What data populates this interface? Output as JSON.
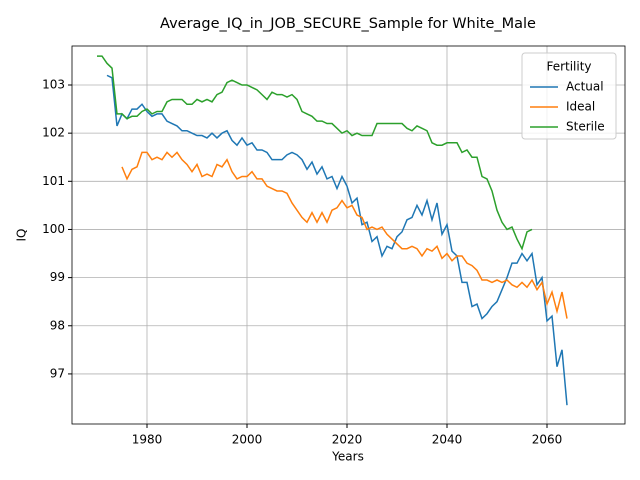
{
  "chart_data": {
    "type": "line",
    "title": "Average_IQ_in_JOB_SECURE_Sample for White_Male",
    "x_label": "Years",
    "y_label": "IQ",
    "legend_title": "Fertility",
    "legend_position": "upper right",
    "grid": true,
    "xlim": [
      1965,
      2075.6
    ],
    "ylim": [
      95.96,
      103.81
    ],
    "xticks": [
      1980,
      2000,
      2020,
      2040,
      2060
    ],
    "yticks": [
      97,
      98,
      99,
      100,
      101,
      102,
      103
    ],
    "series": [
      {
        "name": "Actual",
        "color": "#1f77b4",
        "x": [
          1972,
          1973,
          1974,
          1975,
          1976,
          1977,
          1978,
          1979,
          1980,
          1981,
          1982,
          1983,
          1984,
          1985,
          1986,
          1987,
          1988,
          1989,
          1990,
          1991,
          1992,
          1993,
          1994,
          1995,
          1996,
          1997,
          1998,
          1999,
          2000,
          2001,
          2002,
          2003,
          2004,
          2005,
          2006,
          2007,
          2008,
          2009,
          2010,
          2011,
          2012,
          2013,
          2014,
          2015,
          2016,
          2017,
          2018,
          2019,
          2020,
          2021,
          2022,
          2023,
          2024,
          2025,
          2026,
          2027,
          2028,
          2029,
          2030,
          2031,
          2032,
          2033,
          2034,
          2035,
          2036,
          2037,
          2038,
          2039,
          2040,
          2041,
          2042,
          2043,
          2044,
          2045,
          2046,
          2047,
          2048,
          2049,
          2050,
          2051,
          2052,
          2053,
          2054,
          2055,
          2056,
          2057,
          2058,
          2059,
          2060,
          2061,
          2062,
          2063,
          2064
        ],
        "values": [
          103.2,
          103.15,
          102.15,
          102.4,
          102.3,
          102.5,
          102.5,
          102.6,
          102.45,
          102.35,
          102.4,
          102.4,
          102.25,
          102.2,
          102.15,
          102.05,
          102.05,
          102.0,
          101.95,
          101.95,
          101.9,
          102.0,
          101.9,
          102.0,
          102.05,
          101.85,
          101.75,
          101.9,
          101.75,
          101.8,
          101.65,
          101.65,
          101.6,
          101.45,
          101.45,
          101.45,
          101.55,
          101.6,
          101.55,
          101.45,
          101.25,
          101.4,
          101.15,
          101.3,
          101.05,
          101.1,
          100.85,
          101.1,
          100.9,
          100.55,
          100.65,
          100.1,
          100.15,
          99.75,
          99.85,
          99.45,
          99.65,
          99.6,
          99.85,
          99.95,
          100.2,
          100.25,
          100.5,
          100.3,
          100.6,
          100.2,
          100.55,
          99.9,
          100.1,
          99.55,
          99.45,
          98.9,
          98.9,
          98.4,
          98.45,
          98.15,
          98.25,
          98.4,
          98.5,
          98.75,
          99.0,
          99.3,
          99.3,
          99.5,
          99.35,
          99.5,
          98.85,
          99.0,
          98.1,
          98.2,
          97.15,
          97.5,
          96.35
        ]
      },
      {
        "name": "Ideal",
        "color": "#ff7f0e",
        "x": [
          1975,
          1976,
          1977,
          1978,
          1979,
          1980,
          1981,
          1982,
          1983,
          1984,
          1985,
          1986,
          1987,
          1988,
          1989,
          1990,
          1991,
          1992,
          1993,
          1994,
          1995,
          1996,
          1997,
          1998,
          1999,
          2000,
          2001,
          2002,
          2003,
          2004,
          2005,
          2006,
          2007,
          2008,
          2009,
          2010,
          2011,
          2012,
          2013,
          2014,
          2015,
          2016,
          2017,
          2018,
          2019,
          2020,
          2021,
          2022,
          2023,
          2024,
          2025,
          2026,
          2027,
          2028,
          2029,
          2030,
          2031,
          2032,
          2033,
          2034,
          2035,
          2036,
          2037,
          2038,
          2039,
          2040,
          2041,
          2042,
          2043,
          2044,
          2045,
          2046,
          2047,
          2048,
          2049,
          2050,
          2051,
          2052,
          2053,
          2054,
          2055,
          2056,
          2057,
          2058,
          2059,
          2060,
          2061,
          2062,
          2063,
          2064
        ],
        "values": [
          101.3,
          101.05,
          101.25,
          101.3,
          101.6,
          101.6,
          101.45,
          101.5,
          101.45,
          101.6,
          101.5,
          101.6,
          101.45,
          101.35,
          101.2,
          101.35,
          101.1,
          101.15,
          101.1,
          101.35,
          101.3,
          101.45,
          101.2,
          101.05,
          101.1,
          101.1,
          101.2,
          101.05,
          101.05,
          100.9,
          100.85,
          100.8,
          100.8,
          100.75,
          100.55,
          100.4,
          100.25,
          100.15,
          100.35,
          100.15,
          100.35,
          100.15,
          100.4,
          100.45,
          100.6,
          100.45,
          100.5,
          100.3,
          100.25,
          100.0,
          100.05,
          100.0,
          100.05,
          99.9,
          99.8,
          99.7,
          99.6,
          99.6,
          99.65,
          99.6,
          99.45,
          99.6,
          99.55,
          99.65,
          99.4,
          99.5,
          99.35,
          99.45,
          99.45,
          99.3,
          99.25,
          99.15,
          98.95,
          98.95,
          98.9,
          98.95,
          98.9,
          98.95,
          98.85,
          98.8,
          98.9,
          98.8,
          98.95,
          98.75,
          98.9,
          98.45,
          98.7,
          98.3,
          98.7,
          98.15
        ]
      },
      {
        "name": "Sterile",
        "color": "#2ca02c",
        "x": [
          1970,
          1971,
          1972,
          1973,
          1974,
          1975,
          1976,
          1977,
          1978,
          1979,
          1980,
          1981,
          1982,
          1983,
          1984,
          1985,
          1986,
          1987,
          1988,
          1989,
          1990,
          1991,
          1992,
          1993,
          1994,
          1995,
          1996,
          1997,
          1998,
          1999,
          2000,
          2001,
          2002,
          2003,
          2004,
          2005,
          2006,
          2007,
          2008,
          2009,
          2010,
          2011,
          2012,
          2013,
          2014,
          2015,
          2016,
          2017,
          2018,
          2019,
          2020,
          2021,
          2022,
          2023,
          2024,
          2025,
          2026,
          2027,
          2028,
          2029,
          2030,
          2031,
          2032,
          2033,
          2034,
          2035,
          2036,
          2037,
          2038,
          2039,
          2040,
          2041,
          2042,
          2043,
          2044,
          2045,
          2046,
          2047,
          2048,
          2049,
          2050,
          2051,
          2052,
          2053,
          2054,
          2055,
          2056,
          2057
        ],
        "values": [
          103.6,
          103.6,
          103.45,
          103.35,
          102.4,
          102.4,
          102.3,
          102.35,
          102.35,
          102.45,
          102.5,
          102.4,
          102.45,
          102.45,
          102.65,
          102.7,
          102.7,
          102.7,
          102.6,
          102.6,
          102.7,
          102.65,
          102.7,
          102.65,
          102.8,
          102.85,
          103.05,
          103.1,
          103.05,
          103.0,
          103.0,
          102.95,
          102.9,
          102.8,
          102.7,
          102.85,
          102.8,
          102.8,
          102.75,
          102.8,
          102.7,
          102.45,
          102.4,
          102.35,
          102.25,
          102.25,
          102.2,
          102.2,
          102.1,
          102.0,
          102.05,
          101.95,
          102.0,
          101.95,
          101.95,
          101.95,
          102.2,
          102.2,
          102.2,
          102.2,
          102.2,
          102.2,
          102.1,
          102.05,
          102.15,
          102.1,
          102.05,
          101.8,
          101.75,
          101.75,
          101.8,
          101.8,
          101.8,
          101.6,
          101.65,
          101.5,
          101.5,
          101.1,
          101.05,
          100.8,
          100.4,
          100.15,
          100.0,
          100.05,
          99.8,
          99.6,
          99.95,
          100.0
        ]
      }
    ]
  }
}
